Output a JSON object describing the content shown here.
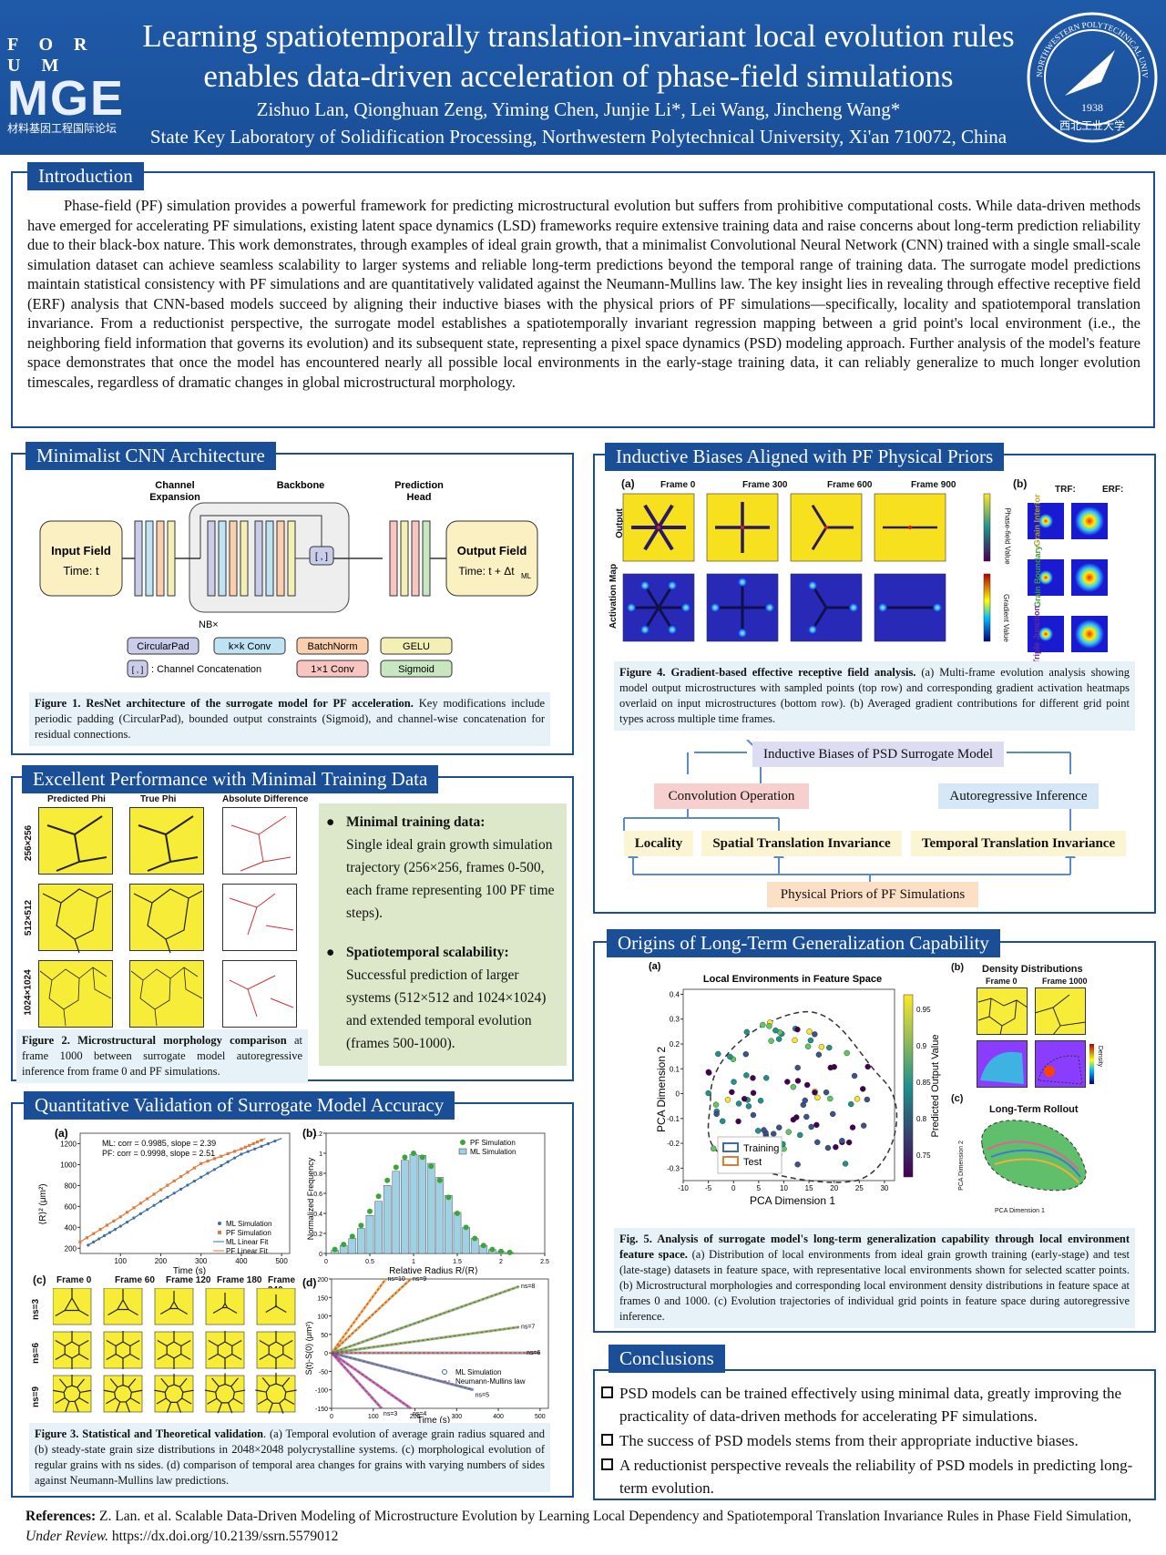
{
  "header": {
    "logo_forum": "F O R U M",
    "logo_big": "MGE",
    "logo_sub": "材料基因工程国际论坛",
    "title_line1": "Learning spatiotemporally translation-invariant local evolution rules",
    "title_line2": "enables data-driven acceleration of phase-field simulations",
    "authors": "Zishuo Lan, Qionghuan Zeng, Yiming Chen, Junjie Li*, Lei Wang, Jincheng Wang*",
    "affiliation": "State Key Laboratory of Solidification Processing, Northwestern Polytechnical University, Xi'an 710072, China",
    "seal_text": "NORTHWESTERN POLYTECHNICAL UNIVERSITY",
    "seal_year": "1938",
    "seal_cn": "西北工业大学"
  },
  "intro": {
    "title": "Introduction",
    "text": "Phase-field (PF) simulation provides a powerful framework for predicting microstructural evolution but suffers from prohibitive computational costs. While data-driven methods have emerged for accelerating PF simulations, existing latent space dynamics (LSD) frameworks require extensive training data and raise concerns about long-term prediction reliability due to their black-box nature. This work demonstrates, through examples of ideal grain growth, that a minimalist Convolutional Neural Network (CNN) trained with a single small-scale simulation dataset can achieve seamless scalability to larger systems and reliable long-term predictions beyond the temporal range of training data. The surrogate model predictions maintain statistical consistency with PF simulations and are quantitatively validated against the Neumann-Mullins law. The key insight lies in revealing through effective receptive field (ERF) analysis that CNN-based models succeed by aligning their inductive biases with the physical priors of PF simulations—specifically, locality and spatiotemporal translation invariance. From a reductionist perspective, the surrogate model establishes a spatiotemporally invariant regression mapping between a grid point's local environment (i.e., the neighboring field information that governs its evolution) and its subsequent state, representing a pixel space dynamics (PSD) modeling approach. Further analysis of the model's feature space demonstrates that once the model has encountered nearly all possible local environments in the early-stage training data, it can reliably generalize to much longer evolution timescales, regardless of dramatic changes in global microstructural morphology."
  },
  "cnn": {
    "title": "Minimalist CNN Architecture",
    "channel_expansion_1": "Channel",
    "channel_expansion_2": "Expansion",
    "backbone": "Backbone",
    "prediction_head_1": "Prediction",
    "prediction_head_2": "Head",
    "input_title": "Input Field",
    "input_time": "Time: t",
    "output_title": "Output Field",
    "output_time": "Time: t + Δt",
    "output_time_sub": "ML",
    "nb": "NB×",
    "concat_symbol": "[ , ]",
    "legend": [
      "CircularPad",
      "k×k Conv",
      "BatchNorm",
      "GELU",
      "1×1 Conv",
      "Sigmoid"
    ],
    "legend_concat": ": Channel Concatenation",
    "colors": {
      "circ": "#c9cdea",
      "conv": "#bfe3f2",
      "bn": "#f9cfae",
      "gelu": "#f4efb5",
      "conv1": "#f8c5c0",
      "sig": "#c8e6c0"
    },
    "caption_bold": "Figure 1. ResNet architecture of the surrogate model for PF acceleration.",
    "caption": " Key modifications include periodic padding (CircularPad), bounded output constraints (Sigmoid), and channel-wise concatenation for residual connections."
  },
  "perf": {
    "title": "Excellent Performance with Minimal Training Data",
    "col_labels": [
      "Predicted Phi",
      "True Phi",
      "Absolute Difference"
    ],
    "row_labels": [
      "256×256",
      "512×512",
      "1024×1024"
    ],
    "bullet1_head": "Minimal training data:",
    "bullet1": "Single ideal grain growth simulation trajectory (256×256, frames 0-500, each frame representing 100 PF time steps).",
    "bullet2_head": "Spatiotemporal scalability:",
    "bullet2": "Successful prediction of larger systems (512×512 and 1024×1024) and extended temporal evolution (frames 500-1000).",
    "caption_bold": "Figure 2. Microstructural morphology comparison",
    "caption": " at frame 1000 between surrogate model autoregressive inference from frame 0 and PF simulations."
  },
  "quant": {
    "title": "Quantitative Validation of Surrogate Model Accuracy",
    "fig_a": "(a)",
    "fig_b": "(b)",
    "fig_c": "(c)",
    "fig_d": "(d)",
    "a_note1": "ML: corr = 0.9985, slope = 2.39",
    "a_note2": "PF: corr = 0.9998, slope = 2.51",
    "a_ylabel": "⟨R⟩² (μm²)",
    "a_xlabel": "Time (s)",
    "a_legend": [
      "ML Simulation",
      "PF Simulation",
      "ML Linear Fit",
      "PF Linear Fit"
    ],
    "b_ylabel": "Normalized Frequency",
    "b_xlabel": "Relative Radius R/⟨R⟩",
    "b_legend": [
      "PF Simulation",
      "ML Simulation"
    ],
    "c_frames": [
      "Frame 0",
      "Frame 60",
      "Frame 120",
      "Frame 180",
      "Frame 240"
    ],
    "c_rows": [
      "ns=3",
      "ns=6",
      "ns=9"
    ],
    "d_ylabel": "S(t)-S(0) (μm²)",
    "d_xlabel": "Time (s)",
    "d_legend": [
      "ML Simulation",
      "Neumann-Mullins law"
    ],
    "d_labels": [
      "ns=10",
      "ns=9",
      "ns=8",
      "ns=7",
      "ns=6",
      "ns=5",
      "ns=4",
      "ns=3"
    ],
    "caption_bold": "Figure 3. Statistical and Theoretical validation",
    "caption": ". (a) Temporal evolution of average grain radius squared and (b) steady-state grain size distributions in 2048×2048 polycrystalline systems. (c) morphological evolution of regular grains with ns sides. (d) comparison of temporal area changes for grains with varying numbers of sides against Neumann-Mullins law predictions."
  },
  "chart_data": [
    {
      "type": "scatter",
      "title": "(a)",
      "xlabel": "Time (s)",
      "ylabel": "⟨R⟩² (μm²)",
      "xlim": [
        0,
        520
      ],
      "ylim": [
        150,
        1300
      ],
      "x_ticks": [
        100,
        200,
        300,
        400,
        500
      ],
      "y_ticks": [
        200,
        400,
        600,
        800,
        1000,
        1200
      ],
      "series": [
        {
          "name": "ML Simulation",
          "x": [
            20,
            100,
            200,
            300,
            400,
            500
          ],
          "values": [
            230,
            410,
            650,
            880,
            1100,
            1250
          ]
        },
        {
          "name": "PF Simulation",
          "x": [
            0,
            100,
            200,
            300,
            400,
            460
          ],
          "values": [
            260,
            500,
            760,
            1010,
            1150,
            1250
          ]
        }
      ]
    },
    {
      "type": "bar",
      "title": "(b)",
      "xlabel": "Relative Radius R/⟨R⟩",
      "ylabel": "Normalized Frequency",
      "xlim": [
        0,
        2.5
      ],
      "ylim": [
        0,
        1.2
      ],
      "x_ticks": [
        0.0,
        0.5,
        1.0,
        1.5,
        2.0,
        2.5
      ],
      "y_ticks": [
        0.0,
        0.1,
        0.2,
        0.3,
        0.4,
        0.5,
        0.6,
        0.7,
        0.8,
        0.9,
        1.0,
        1.1,
        1.2
      ],
      "categories": [
        0.1,
        0.2,
        0.3,
        0.4,
        0.5,
        0.6,
        0.7,
        0.8,
        0.9,
        1.0,
        1.1,
        1.2,
        1.3,
        1.4,
        1.5,
        1.6,
        1.7,
        1.8,
        1.9,
        2.0,
        2.1
      ],
      "series": [
        {
          "name": "ML Simulation",
          "values": [
            0.03,
            0.08,
            0.15,
            0.25,
            0.38,
            0.52,
            0.68,
            0.82,
            0.93,
            0.99,
            0.98,
            0.9,
            0.76,
            0.58,
            0.41,
            0.26,
            0.15,
            0.08,
            0.04,
            0.02,
            0.01
          ]
        },
        {
          "name": "PF Simulation",
          "values": [
            0.04,
            0.09,
            0.17,
            0.28,
            0.42,
            0.57,
            0.73,
            0.86,
            0.96,
            1.0,
            0.96,
            0.87,
            0.73,
            0.56,
            0.4,
            0.26,
            0.15,
            0.08,
            0.04,
            0.02,
            0.01
          ]
        }
      ]
    },
    {
      "type": "line",
      "title": "(d)",
      "xlabel": "Time (s)",
      "ylabel": "S(t)-S(0) (μm²)",
      "xlim": [
        0,
        520
      ],
      "ylim": [
        -150,
        200
      ],
      "x_ticks": [
        0,
        100,
        200,
        300,
        400,
        500
      ],
      "y_ticks": [
        -150,
        -100,
        -50,
        0,
        50,
        100,
        150,
        200
      ],
      "series": [
        {
          "name": "ns=10",
          "x": [
            0,
            130
          ],
          "values": [
            0,
            200
          ]
        },
        {
          "name": "ns=9",
          "x": [
            0,
            190
          ],
          "values": [
            0,
            200
          ]
        },
        {
          "name": "ns=8",
          "x": [
            0,
            450
          ],
          "values": [
            0,
            180
          ]
        },
        {
          "name": "ns=7",
          "x": [
            0,
            450
          ],
          "values": [
            0,
            70
          ]
        },
        {
          "name": "ns=6",
          "x": [
            0,
            500
          ],
          "values": [
            0,
            0
          ]
        },
        {
          "name": "ns=5",
          "x": [
            0,
            340
          ],
          "values": [
            0,
            -100
          ]
        },
        {
          "name": "ns=4",
          "x": [
            0,
            190
          ],
          "values": [
            0,
            -150
          ]
        },
        {
          "name": "ns=3",
          "x": [
            0,
            120
          ],
          "values": [
            0,
            -150
          ]
        }
      ]
    },
    {
      "type": "scatter",
      "title": "Local Environments in Feature Space",
      "xlabel": "PCA Dimension 1",
      "ylabel": "PCA Dimension 2",
      "xlim": [
        -10,
        32
      ],
      "ylim": [
        -0.35,
        0.42
      ],
      "x_ticks": [
        -10,
        -5,
        0,
        5,
        10,
        15,
        20,
        25,
        30
      ],
      "y_ticks": [
        -0.3,
        -0.2,
        -0.1,
        0.0,
        0.1,
        0.2,
        0.3,
        0.4
      ],
      "colorbar_label": "Predicted Output Value",
      "colorbar_ticks": [
        0.75,
        0.8,
        0.85,
        0.9,
        0.95
      ],
      "legend": [
        "Training",
        "Test"
      ]
    }
  ],
  "erf": {
    "title": "Inductive Biases Aligned with PF Physical Priors",
    "fig_a": "(a)",
    "fig_b": "(b)",
    "frames": [
      "Frame 0",
      "Frame 300",
      "Frame 600",
      "Frame 900"
    ],
    "row_labels": [
      "Output",
      "Activation Map"
    ],
    "cbar1": "Phase-field Value",
    "cbar2": "Gradient Value",
    "trf": "TRF:",
    "erf": "ERF:",
    "types": [
      "Grain Interior",
      "Grain Boundary",
      "Triple Junction"
    ],
    "type_colors": [
      "#b8a01a",
      "#3c9a3c",
      "#6b2a8c"
    ],
    "caption_bold": "Figure 4. Gradient-based effective receptive field analysis.",
    "caption": " (a) Multi-frame evolution analysis showing model output microstructures with sampled points (top row) and corresponding gradient activation heatmaps overlaid on input microstructures (bottom row). (b) Averaged gradient contributions for different grid point types across multiple time frames."
  },
  "diagram": {
    "top": "Inductive Biases of PSD Surrogate Model",
    "conv": "Convolution Operation",
    "auto": "Autoregressive Inference",
    "locality": "Locality",
    "spatial": "Spatial Translation Invariance",
    "temporal": "Temporal Translation Invariance",
    "bottom": "Physical Priors of PF Simulations"
  },
  "gen": {
    "title": "Origins of Long-Term Generalization Capability",
    "fig_a": "(a)",
    "fig_b": "(b)",
    "fig_c": "(c)",
    "a_title": "Local Environments in Feature Space",
    "a_xlabel": "PCA Dimension 1",
    "a_ylabel": "PCA Dimension 2",
    "a_cbar": "Predicted Output Value",
    "a_legend": [
      "Training",
      "Test"
    ],
    "b_title": "Density Distributions",
    "b_frames": [
      "Frame 0",
      "Frame 1000"
    ],
    "b_density": "Density",
    "c_title": "Long-Term Rollout",
    "c_xlabel": "PCA Dimension 1",
    "c_ylabel": "PCA Dimension 2",
    "caption_bold": "Fig. 5. Analysis of surrogate model's long-term generalization capability through local environment feature space.",
    "caption": " (a) Distribution of local environments from ideal grain growth training (early-stage) and test (late-stage) datasets in feature space, with representative local environments shown for selected scatter points. (b) Microstructural morphologies and corresponding local environment density distributions in feature space at frames 0 and 1000. (c) Evolution trajectories of individual grid points in feature space during autoregressive inference."
  },
  "conclusions": {
    "title": "Conclusions",
    "items": [
      "PSD models can be trained effectively using minimal data, greatly improving the practicality of data-driven methods for accelerating PF simulations.",
      "The success of PSD models stems from their appropriate inductive biases.",
      "A reductionist perspective reveals the reliability of PSD models in predicting long-term evolution."
    ]
  },
  "refs": {
    "label": "References:",
    "text": " Z. Lan. et al. Scalable Data-Driven Modeling of Microstructure Evolution by Learning Local Dependency and Spatiotemporal Translation Invariance Rules in Phase Field Simulation, ",
    "journal": "Under Review.",
    "doi": " https://dx.doi.org/10.2139/ssrn.5579012"
  }
}
